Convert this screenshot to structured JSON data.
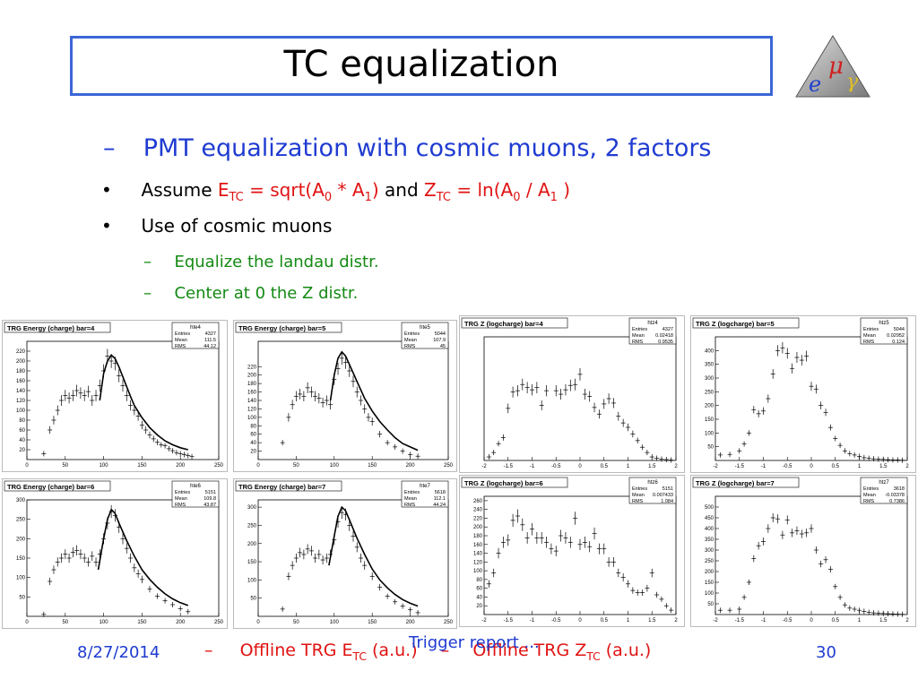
{
  "slide": {
    "title": "TC equalization",
    "date": "8/27/2014",
    "page_number": "30",
    "footer_center": "Trigger report ..."
  },
  "bullets": {
    "l1": "PMT equalization with cosmic muons, 2 factors",
    "l1_marker": "–",
    "bullet_marker": "•",
    "b1_prefix": "Assume ",
    "b1_e": "E",
    "b1_e_sub": "TC",
    "b1_e_mid": " = sqrt(A",
    "b1_e_sub0": "0",
    "b1_e_mid2": " * A",
    "b1_e_sub1": "1",
    "b1_e_end": ")",
    "b1_and": " and ",
    "b1_z": "Z",
    "b1_z_sub": "TC",
    "b1_z_mid": " = ln(A",
    "b1_z_sub0": "0",
    "b1_z_mid2": " / A",
    "b1_z_sub1": "1",
    "b1_z_end": " )",
    "b2": "Use of cosmic muons",
    "s1": "Equalize the landau distr.",
    "s2": "Center at 0 the Z distr.",
    "sub_marker": "–"
  },
  "footer_labels": {
    "marker1": "–",
    "energy_prefix": "Offline TRG E",
    "energy_sub": "TC",
    "energy_suffix": " (a.u.)",
    "marker2": "–",
    "z_prefix": "Offline TRG Z",
    "z_sub": "TC",
    "z_suffix": " (a.u.)"
  },
  "colors": {
    "title_border": "#3a66d6",
    "accent_blue": "#1f3bd1",
    "formula_red": "#e01212",
    "sub_green": "#138a13"
  },
  "chart_data": [
    {
      "type": "scatter",
      "title": "TRG Energy (charge) bar=4",
      "stats_name": "hte4",
      "stats": [
        [
          "Entries",
          "4327"
        ],
        [
          "Mean",
          "111.5"
        ],
        [
          "RMS",
          "44.12"
        ]
      ],
      "xlim": [
        0,
        250
      ],
      "ylim": [
        0,
        240
      ],
      "xticks": [
        0,
        50,
        100,
        150,
        200,
        250
      ],
      "yticks": [
        20,
        40,
        60,
        80,
        100,
        120,
        140,
        160,
        180,
        200,
        220
      ],
      "x": [
        22,
        30,
        35,
        40,
        45,
        50,
        55,
        60,
        65,
        70,
        75,
        80,
        85,
        90,
        95,
        100,
        105,
        110,
        115,
        120,
        125,
        130,
        135,
        140,
        145,
        150,
        155,
        160,
        165,
        170,
        175,
        180,
        185,
        190,
        195,
        200,
        205,
        210,
        215
      ],
      "y": [
        12,
        60,
        80,
        100,
        120,
        130,
        125,
        130,
        140,
        135,
        130,
        138,
        120,
        130,
        150,
        180,
        210,
        200,
        195,
        170,
        150,
        130,
        110,
        100,
        88,
        70,
        60,
        50,
        42,
        35,
        30,
        28,
        22,
        18,
        14,
        12,
        10,
        8,
        6
      ],
      "fit_x": [
        95,
        100,
        105,
        110,
        115,
        120,
        125,
        130,
        135,
        140,
        150,
        160,
        170,
        180,
        190,
        200,
        210
      ],
      "fit_y": [
        120,
        175,
        200,
        212,
        205,
        188,
        168,
        148,
        128,
        110,
        85,
        65,
        50,
        38,
        30,
        24,
        20
      ]
    },
    {
      "type": "scatter",
      "title": "TRG Energy (charge) bar=5",
      "stats_name": "hte5",
      "stats": [
        [
          "Entries",
          "5044"
        ],
        [
          "Mean",
          "107.9"
        ],
        [
          "RMS",
          "45"
        ]
      ],
      "xlim": [
        0,
        250
      ],
      "ylim": [
        0,
        280
      ],
      "xticks": [
        0,
        50,
        100,
        150,
        200,
        250
      ],
      "yticks": [
        20,
        40,
        60,
        80,
        100,
        120,
        140,
        160,
        180,
        200,
        220
      ],
      "x": [
        32,
        40,
        45,
        50,
        55,
        60,
        65,
        70,
        75,
        80,
        85,
        90,
        95,
        100,
        105,
        110,
        115,
        120,
        125,
        130,
        135,
        140,
        145,
        150,
        160,
        170,
        180,
        190,
        200,
        210
      ],
      "y": [
        40,
        100,
        130,
        150,
        155,
        150,
        170,
        160,
        150,
        145,
        135,
        140,
        130,
        190,
        215,
        240,
        230,
        210,
        185,
        160,
        140,
        120,
        100,
        90,
        60,
        40,
        30,
        20,
        12,
        8
      ],
      "fit_x": [
        95,
        100,
        105,
        110,
        115,
        120,
        130,
        140,
        150,
        160,
        170,
        180,
        190,
        200,
        210
      ],
      "fit_y": [
        140,
        200,
        240,
        255,
        245,
        225,
        185,
        145,
        115,
        90,
        70,
        52,
        38,
        30,
        22
      ]
    },
    {
      "type": "scatter",
      "title": "TRG Energy (charge) bar=6",
      "stats_name": "hte6",
      "stats": [
        [
          "Entries",
          "5151"
        ],
        [
          "Mean",
          "109.8"
        ],
        [
          "RMS",
          "43.87"
        ]
      ],
      "xlim": [
        0,
        250
      ],
      "ylim": [
        0,
        300
      ],
      "xticks": [
        0,
        50,
        100,
        150,
        200,
        250
      ],
      "yticks": [
        50,
        100,
        150,
        200,
        250,
        300
      ],
      "x": [
        22,
        30,
        35,
        40,
        45,
        50,
        55,
        60,
        65,
        70,
        75,
        80,
        85,
        90,
        95,
        100,
        105,
        110,
        115,
        120,
        125,
        130,
        135,
        140,
        145,
        150,
        160,
        170,
        180,
        190,
        200,
        210
      ],
      "y": [
        5,
        90,
        120,
        140,
        150,
        160,
        150,
        165,
        170,
        160,
        150,
        140,
        155,
        140,
        160,
        200,
        240,
        270,
        260,
        230,
        200,
        175,
        150,
        125,
        110,
        95,
        70,
        52,
        40,
        30,
        20,
        12
      ],
      "fit_x": [
        93,
        100,
        105,
        110,
        115,
        120,
        130,
        140,
        150,
        160,
        170,
        180,
        190,
        200,
        210
      ],
      "fit_y": [
        120,
        200,
        250,
        275,
        265,
        240,
        195,
        155,
        120,
        95,
        75,
        58,
        45,
        35,
        28
      ]
    },
    {
      "type": "scatter",
      "title": "TRG Energy (charge) bar=7",
      "stats_name": "hte7",
      "stats": [
        [
          "Entries",
          "5618"
        ],
        [
          "Mean",
          "112.1"
        ],
        [
          "RMS",
          "44.24"
        ]
      ],
      "xlim": [
        0,
        250
      ],
      "ylim": [
        0,
        320
      ],
      "xticks": [
        0,
        50,
        100,
        150,
        200,
        250
      ],
      "yticks": [
        50,
        100,
        150,
        200,
        250,
        300
      ],
      "x": [
        32,
        40,
        45,
        50,
        55,
        60,
        65,
        70,
        75,
        80,
        85,
        90,
        95,
        100,
        105,
        110,
        115,
        120,
        125,
        130,
        135,
        140,
        150,
        160,
        170,
        180,
        190,
        200,
        210
      ],
      "y": [
        20,
        110,
        140,
        160,
        175,
        170,
        185,
        180,
        160,
        170,
        155,
        160,
        170,
        210,
        260,
        285,
        280,
        250,
        220,
        190,
        160,
        140,
        110,
        80,
        55,
        40,
        28,
        18,
        10
      ],
      "fit_x": [
        93,
        100,
        105,
        110,
        115,
        120,
        130,
        140,
        150,
        160,
        170,
        180,
        190,
        200,
        210
      ],
      "fit_y": [
        140,
        220,
        275,
        300,
        290,
        265,
        215,
        170,
        130,
        100,
        78,
        60,
        46,
        36,
        28
      ]
    },
    {
      "type": "scatter",
      "title": "TRG Z (logcharge) bar=4",
      "stats_name": "htz4",
      "stats": [
        [
          "Entries",
          "4327"
        ],
        [
          "Mean",
          "0.02418"
        ],
        [
          "RMS",
          "0.9535"
        ]
      ],
      "xlim": [
        -2,
        2
      ],
      "ylim": [
        0,
        280
      ],
      "xticks": [
        -2,
        -1.5,
        -1,
        -0.5,
        0,
        0.5,
        1,
        1.5,
        2
      ],
      "yticks": [],
      "x": [
        -1.9,
        -1.8,
        -1.7,
        -1.6,
        -1.5,
        -1.4,
        -1.3,
        -1.2,
        -1.1,
        -1.0,
        -0.9,
        -0.8,
        -0.7,
        -0.5,
        -0.4,
        -0.3,
        -0.2,
        -0.1,
        0.0,
        0.1,
        0.2,
        0.3,
        0.4,
        0.5,
        0.6,
        0.7,
        0.8,
        0.9,
        1.0,
        1.1,
        1.2,
        1.3,
        1.4,
        1.5,
        1.6,
        1.7,
        1.8,
        1.9
      ],
      "y": [
        8,
        18,
        38,
        52,
        118,
        155,
        158,
        172,
        165,
        160,
        165,
        125,
        158,
        158,
        150,
        160,
        170,
        172,
        195,
        150,
        145,
        120,
        105,
        128,
        140,
        130,
        100,
        85,
        75,
        60,
        45,
        30,
        18,
        8,
        5,
        3,
        2,
        1
      ]
    },
    {
      "type": "scatter",
      "title": "TRG Z (logcharge) bar=5",
      "stats_name": "htz5",
      "stats": [
        [
          "Entries",
          "5044"
        ],
        [
          "Mean",
          "0.02952"
        ],
        [
          "RMS",
          "0.124"
        ]
      ],
      "xlim": [
        -2,
        2
      ],
      "ylim": [
        0,
        450
      ],
      "xticks": [
        -2,
        -1.5,
        -1,
        -0.5,
        0,
        0.5,
        1,
        1.5,
        2
      ],
      "yticks": [
        50,
        100,
        150,
        200,
        250,
        300,
        350,
        400
      ],
      "x": [
        -1.9,
        -1.7,
        -1.5,
        -1.4,
        -1.3,
        -1.2,
        -1.1,
        -1.0,
        -0.9,
        -0.8,
        -0.7,
        -0.6,
        -0.5,
        -0.4,
        -0.3,
        -0.2,
        -0.1,
        0.0,
        0.1,
        0.2,
        0.3,
        0.4,
        0.5,
        0.6,
        0.7,
        0.8,
        0.9,
        1.0,
        1.1,
        1.2,
        1.3,
        1.4,
        1.5,
        1.6,
        1.7,
        1.8,
        1.9
      ],
      "y": [
        20,
        22,
        35,
        60,
        100,
        185,
        170,
        180,
        225,
        315,
        400,
        410,
        390,
        335,
        375,
        365,
        380,
        270,
        260,
        200,
        175,
        120,
        80,
        55,
        35,
        25,
        20,
        15,
        10,
        8,
        6,
        5,
        4,
        3,
        2,
        2,
        1
      ]
    },
    {
      "type": "scatter",
      "title": "TRG Z (logcharge) bar=6",
      "stats_name": "htz6",
      "stats": [
        [
          "Entries",
          "5151"
        ],
        [
          "Mean",
          "0.007433"
        ],
        [
          "RMS",
          "1.084"
        ]
      ],
      "xlim": [
        -2,
        2
      ],
      "ylim": [
        0,
        270
      ],
      "xticks": [
        -2,
        -1.5,
        -1,
        -0.5,
        0,
        0.5,
        1,
        1.5,
        2
      ],
      "yticks": [
        20,
        40,
        60,
        80,
        100,
        120,
        140,
        160,
        180,
        200,
        220,
        240,
        260
      ],
      "x": [
        -1.9,
        -1.8,
        -1.7,
        -1.6,
        -1.5,
        -1.4,
        -1.3,
        -1.2,
        -1.1,
        -1.0,
        -0.9,
        -0.8,
        -0.7,
        -0.6,
        -0.5,
        -0.4,
        -0.3,
        -0.2,
        -0.1,
        0.0,
        0.1,
        0.2,
        0.3,
        0.4,
        0.5,
        0.6,
        0.7,
        0.8,
        0.9,
        1.0,
        1.1,
        1.2,
        1.3,
        1.4,
        1.5,
        1.6,
        1.7,
        1.8,
        1.9
      ],
      "y": [
        70,
        95,
        140,
        165,
        170,
        215,
        225,
        205,
        175,
        195,
        175,
        175,
        165,
        150,
        145,
        180,
        175,
        165,
        220,
        160,
        165,
        155,
        185,
        150,
        150,
        120,
        120,
        95,
        85,
        70,
        55,
        50,
        50,
        60,
        95,
        45,
        35,
        20,
        10
      ]
    },
    {
      "type": "scatter",
      "title": "TRG Z (logcharge) bar=7",
      "stats_name": "htz7",
      "stats": [
        [
          "Entries",
          "3618"
        ],
        [
          "Mean",
          "-0.03378"
        ],
        [
          "RMS",
          "0.7386"
        ]
      ],
      "xlim": [
        -2,
        2
      ],
      "ylim": [
        0,
        550
      ],
      "xticks": [
        -2,
        -1.5,
        -1,
        -0.5,
        0,
        0.5,
        1,
        1.5,
        2
      ],
      "yticks": [
        50,
        100,
        150,
        200,
        250,
        300,
        350,
        400,
        450,
        500
      ],
      "x": [
        -1.9,
        -1.7,
        -1.5,
        -1.4,
        -1.3,
        -1.2,
        -1.1,
        -1.0,
        -0.9,
        -0.8,
        -0.7,
        -0.6,
        -0.5,
        -0.4,
        -0.3,
        -0.2,
        -0.1,
        0.0,
        0.1,
        0.2,
        0.3,
        0.4,
        0.5,
        0.6,
        0.7,
        0.8,
        0.9,
        1.0,
        1.1,
        1.2,
        1.3,
        1.4,
        1.5,
        1.6,
        1.7,
        1.8,
        1.9
      ],
      "y": [
        20,
        20,
        25,
        80,
        150,
        260,
        320,
        340,
        400,
        450,
        445,
        370,
        440,
        380,
        390,
        375,
        380,
        400,
        300,
        235,
        255,
        210,
        130,
        80,
        45,
        30,
        25,
        20,
        15,
        10,
        8,
        6,
        5,
        4,
        3,
        2,
        1
      ]
    }
  ]
}
